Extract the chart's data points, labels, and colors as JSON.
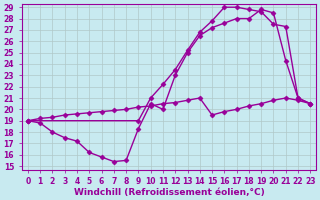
{
  "background_color": "#c8eaf0",
  "grid_color": "#b0c8c8",
  "line_color": "#990099",
  "marker": "D",
  "markersize": 2.5,
  "linewidth": 1.0,
  "xlabel": "Windchill (Refroidissement éolien,°C)",
  "xlabel_fontsize": 6.5,
  "xlim": [
    -0.5,
    23.5
  ],
  "ylim": [
    14.7,
    29.3
  ],
  "xticks": [
    0,
    1,
    2,
    3,
    4,
    5,
    6,
    7,
    8,
    9,
    10,
    11,
    12,
    13,
    14,
    15,
    16,
    17,
    18,
    19,
    20,
    21,
    22,
    23
  ],
  "yticks": [
    15,
    16,
    17,
    18,
    19,
    20,
    21,
    22,
    23,
    24,
    25,
    26,
    27,
    28,
    29
  ],
  "tick_fontsize": 5.5,
  "line1_x": [
    0,
    1,
    2,
    3,
    4,
    5,
    6,
    7,
    8,
    9,
    10,
    11,
    12,
    13,
    14,
    15,
    16,
    17,
    18,
    19,
    20,
    21,
    22,
    23
  ],
  "line1_y": [
    19.0,
    18.8,
    18.0,
    17.5,
    17.2,
    16.2,
    15.8,
    15.4,
    15.5,
    18.3,
    20.5,
    20.0,
    23.0,
    25.0,
    26.5,
    27.2,
    27.6,
    28.0,
    28.0,
    28.8,
    28.5,
    24.3,
    21.0,
    20.5
  ],
  "line2_x": [
    0,
    1,
    2,
    3,
    4,
    5,
    6,
    7,
    8,
    9,
    10,
    11,
    12,
    13,
    14,
    15,
    16,
    17,
    18,
    19,
    20,
    21,
    22,
    23
  ],
  "line2_y": [
    19.0,
    19.2,
    19.3,
    19.5,
    19.6,
    19.7,
    19.8,
    19.9,
    20.0,
    20.2,
    20.3,
    20.5,
    20.6,
    20.8,
    21.0,
    19.5,
    19.8,
    20.0,
    20.3,
    20.5,
    20.8,
    21.0,
    20.8,
    20.5
  ],
  "line3_x": [
    0,
    9,
    10,
    11,
    12,
    13,
    14,
    15,
    16,
    17,
    18,
    19,
    20,
    21,
    22,
    23
  ],
  "line3_y": [
    19.0,
    19.0,
    21.0,
    22.2,
    23.5,
    25.2,
    26.8,
    27.8,
    29.0,
    29.0,
    28.8,
    28.6,
    27.5,
    27.3,
    21.0,
    20.5
  ]
}
